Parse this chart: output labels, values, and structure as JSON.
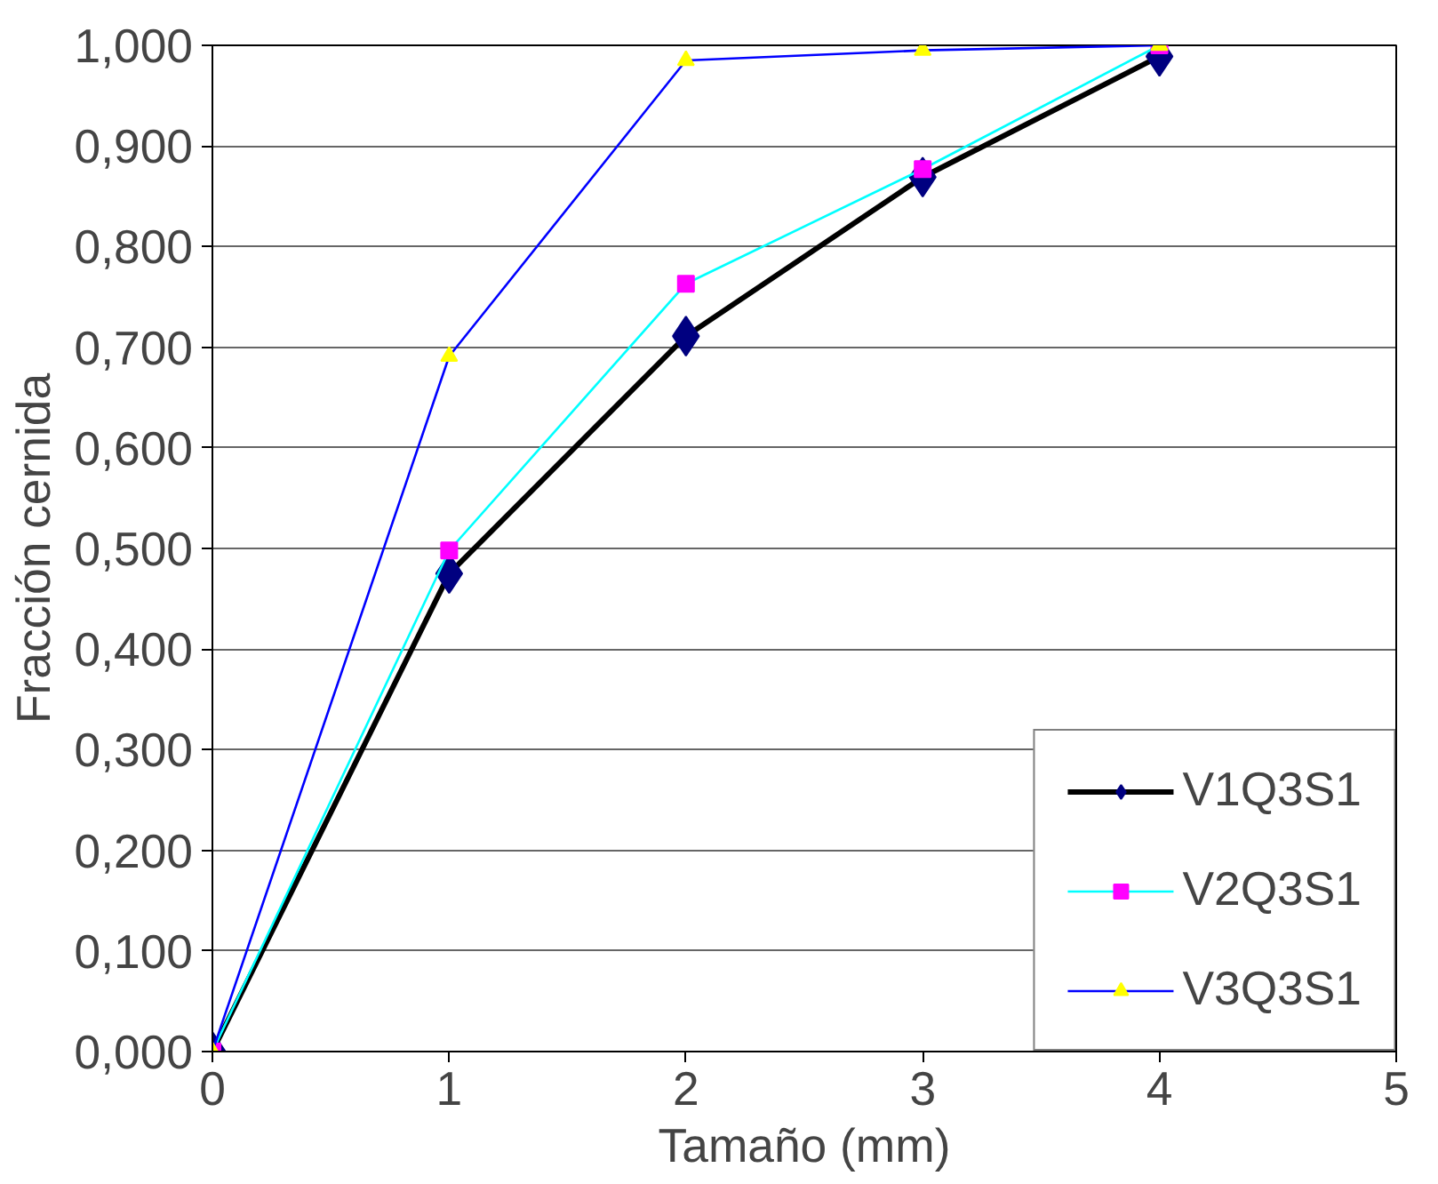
{
  "chart_data": {
    "type": "line",
    "xlabel": "Tamaño (mm)",
    "ylabel": "Fracción cernida",
    "x": [
      0,
      1,
      2,
      3,
      4
    ],
    "series": [
      {
        "name": "V1Q3S1",
        "color": "#000000",
        "colors": [
          "#000080",
          "#000080",
          "#000080",
          "#000080",
          "#000080"
        ],
        "marker": "diamond",
        "values": [
          0,
          0.475,
          0.711,
          0.869,
          0.989
        ]
      },
      {
        "name": "V2Q3S1",
        "color": "#00ffff",
        "colors": [
          "#ff00ff",
          "#ff00ff",
          "#ff00ff",
          "#ff00ff",
          "#ff00ff"
        ],
        "marker": "square",
        "values": [
          0,
          0.498,
          0.763,
          0.877,
          1.0
        ]
      },
      {
        "name": "V3Q3S1",
        "color": "#0000ff",
        "colors": [
          "#ffff00",
          "#ffff00",
          "#ffff00",
          "#ffff00",
          "#ffff00"
        ],
        "marker": "triangle",
        "values": [
          0,
          0.691,
          0.985,
          0.995,
          1.0
        ]
      }
    ],
    "xlim": [
      0,
      5
    ],
    "xticks": [
      0,
      1,
      2,
      3,
      4,
      5
    ],
    "ylim": [
      0,
      1
    ],
    "yticks": [
      {
        "value": 0,
        "label": "0,000"
      },
      {
        "value": 0.1,
        "label": "0,100"
      },
      {
        "value": 0.2,
        "label": "0,200"
      },
      {
        "value": 0.3,
        "label": "0,300"
      },
      {
        "value": 0.4,
        "label": "0,400"
      },
      {
        "value": 0.5,
        "label": "0,500"
      },
      {
        "value": 0.6,
        "label": "0,600"
      },
      {
        "value": 0.7,
        "label": "0,700"
      },
      {
        "value": 0.8,
        "label": "0,800"
      },
      {
        "value": 0.9,
        "label": "0,900"
      },
      {
        "value": 1,
        "label": "1,000"
      }
    ],
    "grid": "y",
    "legend": "bottom right",
    "line_style": "solid"
  }
}
